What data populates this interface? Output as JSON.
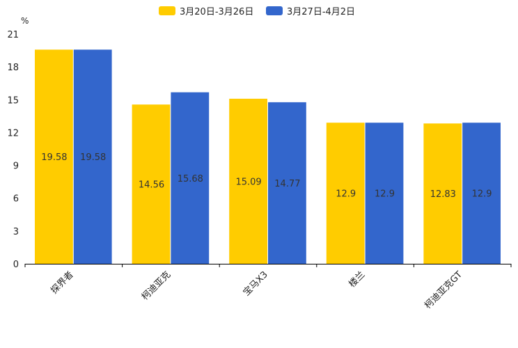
{
  "chart_data": {
    "type": "bar",
    "title": "",
    "ylabel": "%",
    "xlabel": "",
    "ylim": [
      0,
      21
    ],
    "yticks": [
      0,
      3,
      6,
      9,
      12,
      15,
      18,
      21
    ],
    "grid": false,
    "legend_position": "top-center",
    "categories": [
      "探界者",
      "柯迪亚克",
      "宝马X3",
      "楼兰",
      "柯迪亚克GT"
    ],
    "series": [
      {
        "name": "3月20日-3月26日",
        "color": "#FFCC00",
        "values": [
          19.58,
          14.56,
          15.09,
          12.9,
          12.83
        ]
      },
      {
        "name": "3月27日-4月2日",
        "color": "#3366CC",
        "values": [
          19.58,
          15.68,
          14.77,
          12.9,
          12.9
        ]
      }
    ]
  }
}
